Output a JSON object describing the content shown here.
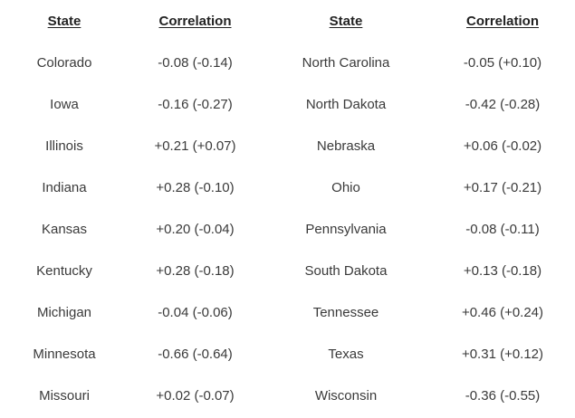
{
  "headers": {
    "state_left": "State",
    "corr_left": "Correlation",
    "state_right": "State",
    "corr_right": "Correlation"
  },
  "rows": [
    {
      "left_state": "Colorado",
      "left_corr": "-0.08 (-0.14)",
      "right_state": "North Carolina",
      "right_corr": "-0.05 (+0.10)"
    },
    {
      "left_state": "Iowa",
      "left_corr": "-0.16 (-0.27)",
      "right_state": "North Dakota",
      "right_corr": "-0.42 (-0.28)"
    },
    {
      "left_state": "Illinois",
      "left_corr": "+0.21 (+0.07)",
      "right_state": "Nebraska",
      "right_corr": "+0.06 (-0.02)"
    },
    {
      "left_state": "Indiana",
      "left_corr": "+0.28 (-0.10)",
      "right_state": "Ohio",
      "right_corr": "+0.17 (-0.21)"
    },
    {
      "left_state": "Kansas",
      "left_corr": "+0.20 (-0.04)",
      "right_state": "Pennsylvania",
      "right_corr": "-0.08 (-0.11)"
    },
    {
      "left_state": "Kentucky",
      "left_corr": "+0.28 (-0.18)",
      "right_state": "South Dakota",
      "right_corr": "+0.13 (-0.18)"
    },
    {
      "left_state": "Michigan",
      "left_corr": "-0.04 (-0.06)",
      "right_state": "Tennessee",
      "right_corr": "+0.46 (+0.24)"
    },
    {
      "left_state": "Minnesota",
      "left_corr": "-0.66 (-0.64)",
      "right_state": "Texas",
      "right_corr": "+0.31 (+0.12)"
    },
    {
      "left_state": "Missouri",
      "left_corr": "+0.02 (-0.07)",
      "right_state": "Wisconsin",
      "right_corr": "-0.36 (-0.55)"
    }
  ]
}
